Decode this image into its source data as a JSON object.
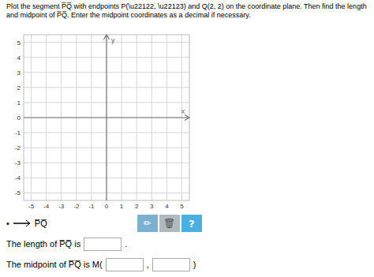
{
  "chart_data": {
    "type": "plane",
    "title": [
      "Plot the segment P̅Q̅ with endpoints P(\\u22122, \\u22123) and Q(2, 2) on the coordinate plane. Then find the length",
      "and midpoint of P̅Q̅. Enter the midpoint coordinates as a decimal if necessary."
    ],
    "x_label": "x",
    "y_label": "y",
    "xlim": [
      -5.5,
      5.5
    ],
    "ylim": [
      -5.5,
      5.5
    ],
    "xticks": [
      -5,
      -4,
      -3,
      -2,
      -1,
      0,
      1,
      2,
      3,
      4,
      5
    ],
    "yticks": [
      -5,
      -4,
      -3,
      -2,
      -1,
      0,
      1,
      2,
      3,
      4,
      5
    ],
    "grid": true,
    "annotations": [
      {
        "text": "•"
      },
      {
        "text": "P̅Q̅"
      },
      {
        "text": "✏",
        "color": "#7ab0d0"
      },
      {
        "text": "🗑",
        "color": "#b0b8c0"
      },
      {
        "text": "?",
        "color": "#4ab0e0"
      },
      {
        "text": "The length of P̅Q̅ is"
      },
      {
        "text": "."
      },
      {
        "text": "The midpoint of P̅Q̅ is M("
      },
      {
        "text": ","
      },
      {
        "text": ")"
      }
    ]
  }
}
